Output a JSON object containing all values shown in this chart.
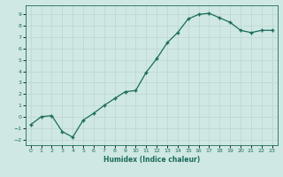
{
  "x": [
    0,
    1,
    2,
    3,
    4,
    5,
    6,
    7,
    8,
    9,
    10,
    11,
    12,
    13,
    14,
    15,
    16,
    17,
    18,
    19,
    20,
    21,
    22,
    23
  ],
  "y": [
    -0.7,
    0.0,
    0.1,
    -1.3,
    -1.8,
    -0.3,
    0.3,
    1.0,
    1.6,
    2.2,
    2.3,
    3.9,
    5.1,
    6.5,
    7.4,
    8.6,
    9.0,
    9.1,
    8.7,
    8.3,
    7.6,
    7.4,
    7.6,
    7.6
  ],
  "xlabel": "Humidex (Indice chaleur)",
  "background_color": "#cfe8e4",
  "grid_color": "#c0d8d2",
  "line_color": "#1a6b5a",
  "marker_color": "#1a6b5a",
  "ylim": [
    -2.5,
    9.8
  ],
  "xlim": [
    -0.5,
    23.5
  ],
  "yticks": [
    -2,
    -1,
    0,
    1,
    2,
    3,
    4,
    5,
    6,
    7,
    8,
    9
  ],
  "xticks": [
    0,
    1,
    2,
    3,
    4,
    5,
    6,
    7,
    8,
    9,
    10,
    11,
    12,
    13,
    14,
    15,
    16,
    17,
    18,
    19,
    20,
    21,
    22,
    23
  ]
}
